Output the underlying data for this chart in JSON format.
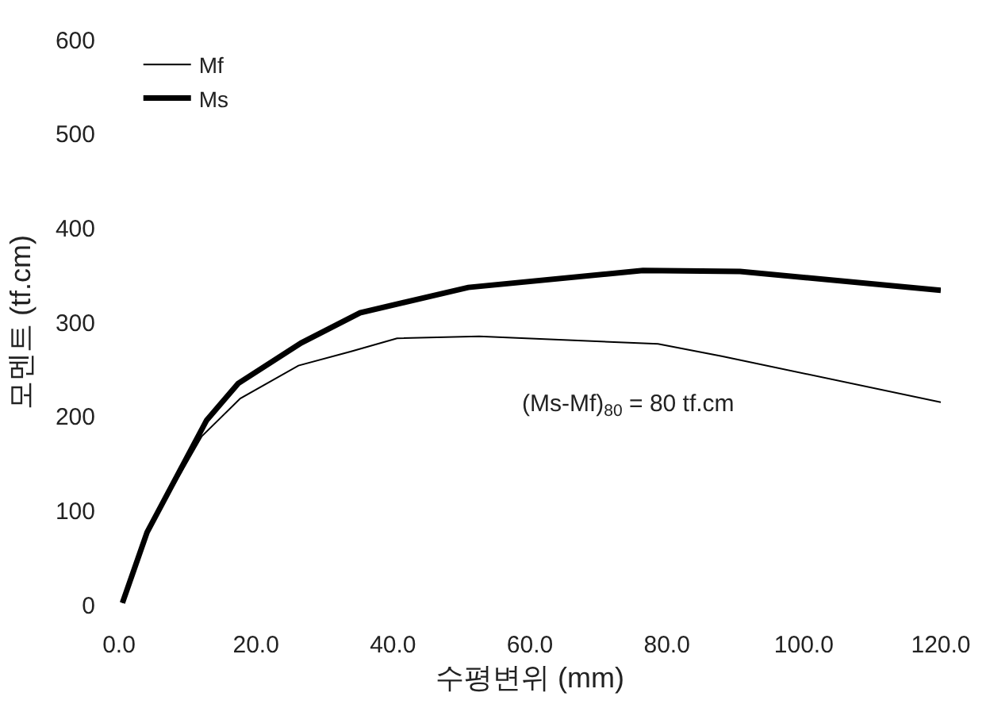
{
  "chart_data": {
    "type": "line",
    "xlabel": "수평변위 (mm)",
    "ylabel": "모멘트 (tf.cm)",
    "series": [
      {
        "name": "Mf",
        "color": "#000000",
        "x": [
          0.5,
          4.1,
          12.1,
          17.7,
          26.2,
          33.9,
          40.6,
          52.6,
          78.7,
          88,
          120
        ],
        "values": [
          2,
          77,
          179,
          219,
          254,
          269,
          283,
          285,
          277,
          264,
          215
        ]
      },
      {
        "name": "Ms",
        "color": "#000000",
        "x": [
          0.5,
          4.1,
          12.8,
          17.4,
          26.6,
          35.2,
          51,
          76.5,
          90.7,
          120
        ],
        "values": [
          2,
          77,
          196,
          235,
          278,
          310,
          337,
          355,
          354,
          334
        ]
      }
    ],
    "annotations": [
      "(Ms-Mf)$_{80}$ = 80 tf.cm"
    ],
    "xlim": [
      0,
      120
    ],
    "ylim": [
      0,
      600
    ],
    "xticks": [
      {
        "value": 0,
        "label": "0.0"
      },
      {
        "value": 20,
        "label": "20.0"
      },
      {
        "value": 40,
        "label": "40.0"
      },
      {
        "value": 60,
        "label": "60.0"
      },
      {
        "value": 80,
        "label": "80.0"
      },
      {
        "value": 100,
        "label": "100.0"
      },
      {
        "value": 120,
        "label": "120.0"
      }
    ],
    "yticks": [
      0,
      100,
      200,
      300,
      400,
      500,
      600
    ],
    "legend": "top left",
    "marker": "none",
    "line_style": "solid"
  }
}
